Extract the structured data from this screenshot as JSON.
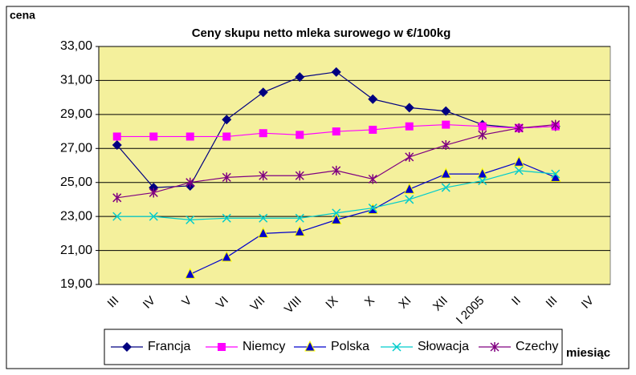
{
  "chart_data": {
    "type": "line",
    "title": "Ceny skupu netto mleka surowego  w €/100kg",
    "y_label": "cena",
    "x_label": "miesiąc",
    "categories": [
      "III",
      "IV",
      "V",
      "VI",
      "VII",
      "VIII",
      "IX",
      "X",
      "XI",
      "XII",
      "I 2005",
      "II",
      "III",
      "IV"
    ],
    "series": [
      {
        "name": "Francja",
        "color": "#000080",
        "marker": "diamond",
        "values": [
          27.2,
          24.7,
          24.8,
          28.7,
          30.3,
          31.2,
          31.5,
          29.9,
          29.4,
          29.2,
          28.4,
          28.2,
          28.3,
          null
        ]
      },
      {
        "name": "Niemcy",
        "color": "#ff00ff",
        "marker": "square",
        "values": [
          27.7,
          27.7,
          27.7,
          27.7,
          27.9,
          27.8,
          28.0,
          28.1,
          28.3,
          28.4,
          28.3,
          28.2,
          28.3,
          null
        ]
      },
      {
        "name": "Polska",
        "color": "#0000cc",
        "marker": "triangle",
        "values": [
          null,
          null,
          19.6,
          20.6,
          22.0,
          22.1,
          22.8,
          23.4,
          24.6,
          25.5,
          25.5,
          26.2,
          25.3,
          null
        ]
      },
      {
        "name": "Słowacja",
        "color": "#00cccc",
        "marker": "x",
        "values": [
          23.0,
          23.0,
          22.8,
          22.9,
          22.9,
          22.9,
          23.2,
          23.5,
          24.0,
          24.7,
          25.1,
          25.7,
          25.5,
          null
        ]
      },
      {
        "name": "Czechy",
        "color": "#800080",
        "marker": "star",
        "values": [
          24.1,
          24.4,
          25.0,
          25.3,
          25.4,
          25.4,
          25.7,
          25.2,
          26.5,
          27.2,
          27.8,
          28.2,
          28.4,
          null
        ]
      }
    ],
    "ylim": [
      19,
      33
    ],
    "yticks": [
      {
        "value": 19,
        "label": "19,00"
      },
      {
        "value": 21,
        "label": "21,00"
      },
      {
        "value": 23,
        "label": "23,00"
      },
      {
        "value": 25,
        "label": "25,00"
      },
      {
        "value": 27,
        "label": "27,00"
      },
      {
        "value": 29,
        "label": "29,00"
      },
      {
        "value": 31,
        "label": "31,00"
      },
      {
        "value": 33,
        "label": "33,00"
      }
    ],
    "grid": true,
    "plot_background": "#f4f09c",
    "legend": "bottom"
  }
}
